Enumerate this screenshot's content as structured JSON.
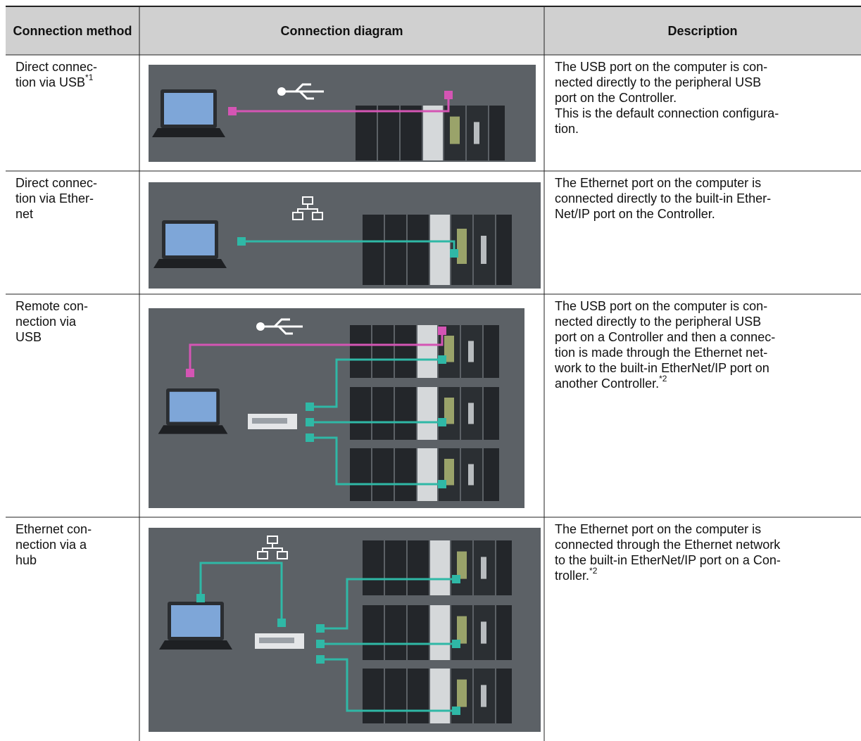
{
  "header": {
    "method": "Connection method",
    "diagram": "Connection diagram",
    "description": "Description"
  },
  "rows": [
    {
      "method_lines": [
        "Direct connec-",
        "tion via USB"
      ],
      "method_note": "*1",
      "description_lines": [
        "The USB port on the computer is con-",
        "nected directly to the peripheral USB",
        "port on the Controller.",
        "This is the default connection configura-",
        "tion."
      ]
    },
    {
      "method_lines": [
        "Direct connec-",
        "tion via Ether-",
        "net"
      ],
      "description_lines": [
        "The Ethernet port on the computer is",
        "connected directly to the built-in Ether-",
        "Net/IP port on the Controller."
      ]
    },
    {
      "method_lines": [
        "Remote con-",
        "nection via",
        "USB"
      ],
      "description_lines": [
        "The USB port on the computer is con-",
        "nected directly to the peripheral USB",
        "port on a Controller and then a connec-",
        "tion is made through the Ethernet net-",
        "work to the built-in EtherNet/IP port on",
        "another Controller."
      ],
      "description_note": "*2"
    },
    {
      "method_lines": [
        "Ethernet con-",
        "nection via a",
        "hub"
      ],
      "description_lines": [
        "The Ethernet port on the computer is",
        "connected through the Ethernet network",
        "to the built-in EtherNet/IP port on a Con-",
        "troller."
      ],
      "description_note": "*2"
    }
  ]
}
